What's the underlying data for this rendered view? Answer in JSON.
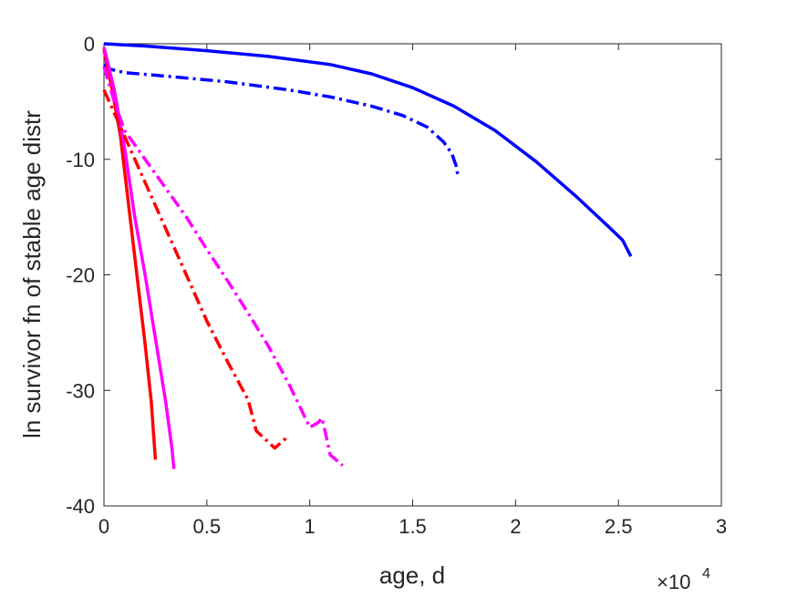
{
  "chart_data": {
    "type": "line",
    "title": "",
    "xlabel": "age, d",
    "ylabel": "ln survivor fn of stable age distr",
    "x_multiplier_label": "×10",
    "x_multiplier_exponent": "4",
    "xlim": [
      0,
      30000
    ],
    "ylim": [
      -40,
      0
    ],
    "xticks": [
      0,
      5000,
      10000,
      15000,
      20000,
      25000,
      30000
    ],
    "xtick_labels": [
      "0",
      "0.5",
      "1",
      "1.5",
      "2",
      "2.5",
      "3"
    ],
    "yticks": [
      0,
      -10,
      -20,
      -30,
      -40
    ],
    "ytick_labels": [
      "0",
      "-10",
      "-20",
      "-30",
      "-40"
    ],
    "grid": false,
    "series": [
      {
        "color": "#0000ff",
        "style": "solid",
        "points": [
          [
            0,
            0
          ],
          [
            2000,
            -0.2
          ],
          [
            5000,
            -0.6
          ],
          [
            8000,
            -1.1
          ],
          [
            11000,
            -1.8
          ],
          [
            13000,
            -2.6
          ],
          [
            15000,
            -3.8
          ],
          [
            17000,
            -5.4
          ],
          [
            19000,
            -7.5
          ],
          [
            21000,
            -10.2
          ],
          [
            23000,
            -13.3
          ],
          [
            24500,
            -15.8
          ],
          [
            25200,
            -17.0
          ],
          [
            25600,
            -18.4
          ]
        ]
      },
      {
        "color": "#0000ff",
        "style": "dashdot",
        "points": [
          [
            0,
            -1.8
          ],
          [
            300,
            -2.2
          ],
          [
            1000,
            -2.5
          ],
          [
            3000,
            -2.8
          ],
          [
            6000,
            -3.3
          ],
          [
            9000,
            -4.0
          ],
          [
            11000,
            -4.6
          ],
          [
            13000,
            -5.4
          ],
          [
            14500,
            -6.2
          ],
          [
            15700,
            -7.2
          ],
          [
            16500,
            -8.5
          ],
          [
            16900,
            -9.5
          ],
          [
            17100,
            -10.5
          ],
          [
            17200,
            -11.4
          ]
        ]
      },
      {
        "color": "#ff0000",
        "style": "solid",
        "points": [
          [
            0,
            -0.5
          ],
          [
            400,
            -4
          ],
          [
            800,
            -8
          ],
          [
            1200,
            -14
          ],
          [
            1600,
            -20
          ],
          [
            2000,
            -26
          ],
          [
            2300,
            -31
          ],
          [
            2500,
            -36
          ]
        ]
      },
      {
        "color": "#ff00ff",
        "style": "solid",
        "points": [
          [
            0,
            -0.3
          ],
          [
            500,
            -4
          ],
          [
            1000,
            -9
          ],
          [
            1500,
            -15
          ],
          [
            2000,
            -20
          ],
          [
            2500,
            -25.5
          ],
          [
            3000,
            -31
          ],
          [
            3300,
            -35
          ],
          [
            3400,
            -36.8
          ]
        ]
      },
      {
        "color": "#ff0000",
        "style": "dashdot",
        "points": [
          [
            0,
            -4
          ],
          [
            500,
            -6
          ],
          [
            1000,
            -8
          ],
          [
            2000,
            -12
          ],
          [
            3000,
            -16
          ],
          [
            4000,
            -20
          ],
          [
            5000,
            -24
          ],
          [
            6000,
            -27.5
          ],
          [
            7000,
            -30.8
          ],
          [
            7400,
            -33.5
          ],
          [
            8000,
            -34.5
          ],
          [
            8300,
            -35
          ],
          [
            8800,
            -34.2
          ],
          [
            8900,
            -33.8
          ]
        ]
      },
      {
        "color": "#ff00ff",
        "style": "dashdot",
        "points": [
          [
            0,
            -2
          ],
          [
            500,
            -5
          ],
          [
            1000,
            -7.5
          ],
          [
            2000,
            -10
          ],
          [
            3000,
            -12.5
          ],
          [
            4000,
            -15
          ],
          [
            5000,
            -17.8
          ],
          [
            6000,
            -20.5
          ],
          [
            7000,
            -23.3
          ],
          [
            8000,
            -26.2
          ],
          [
            9000,
            -29.5
          ],
          [
            10000,
            -33.2
          ],
          [
            10400,
            -32.8
          ],
          [
            10600,
            -32.4
          ],
          [
            11000,
            -35.6
          ],
          [
            11600,
            -36.5
          ]
        ]
      }
    ]
  }
}
